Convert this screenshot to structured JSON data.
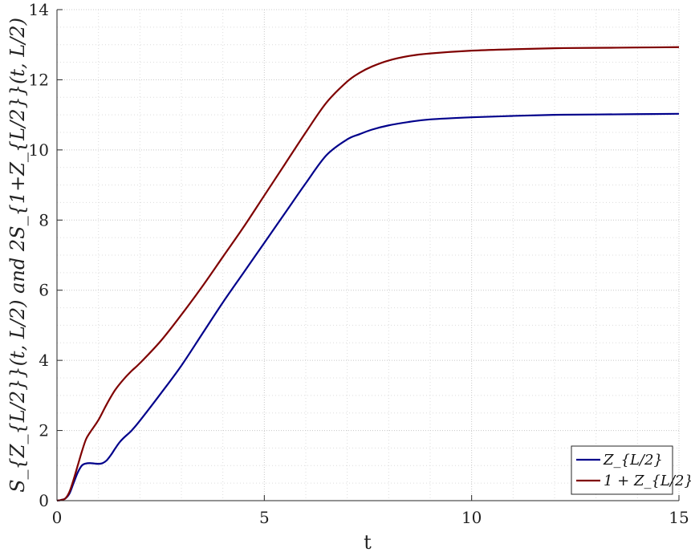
{
  "chart_data": {
    "type": "line",
    "xlabel": "t",
    "ylabel": "S_{Z_{L/2}}(t, L/2) and 2S_{1+Z_{L/2}}(t, L/2)",
    "xlim": [
      0,
      15
    ],
    "ylim": [
      0,
      14
    ],
    "xticks": [
      0,
      5,
      10,
      15
    ],
    "yticks": [
      0,
      2,
      4,
      6,
      8,
      10,
      12,
      14
    ],
    "grid": true,
    "minor_grid": true,
    "legend_position": "bottom-right",
    "series": [
      {
        "name": "Z_{L/2}",
        "color": "#00008b",
        "x": [
          0,
          0.1,
          0.2,
          0.3,
          0.4,
          0.5,
          0.6,
          0.7,
          0.8,
          0.9,
          1.0,
          1.1,
          1.2,
          1.3,
          1.4,
          1.5,
          1.6,
          1.8,
          2.0,
          2.5,
          3.0,
          3.5,
          4.0,
          4.5,
          5.0,
          5.5,
          6.0,
          6.5,
          7.0,
          7.3,
          7.6,
          8.0,
          8.5,
          9.0,
          10.0,
          11.0,
          12.0,
          13.0,
          14.0,
          15.0
        ],
        "y": [
          0,
          0.02,
          0.06,
          0.2,
          0.5,
          0.8,
          1.0,
          1.06,
          1.07,
          1.06,
          1.05,
          1.07,
          1.15,
          1.3,
          1.48,
          1.65,
          1.78,
          2.0,
          2.28,
          3.05,
          3.85,
          4.75,
          5.65,
          6.5,
          7.35,
          8.2,
          9.05,
          9.85,
          10.3,
          10.45,
          10.58,
          10.7,
          10.8,
          10.87,
          10.93,
          10.97,
          11.0,
          11.01,
          11.02,
          11.03
        ]
      },
      {
        "name": "1 + Z_{L/2}",
        "color": "#7f0000",
        "x": [
          0,
          0.1,
          0.2,
          0.3,
          0.4,
          0.5,
          0.6,
          0.7,
          0.8,
          1.0,
          1.2,
          1.4,
          1.6,
          1.8,
          2.0,
          2.5,
          3.0,
          3.5,
          4.0,
          4.5,
          5.0,
          5.5,
          6.0,
          6.5,
          7.0,
          7.3,
          7.6,
          8.0,
          8.5,
          9.0,
          10.0,
          11.0,
          12.0,
          13.0,
          14.0,
          15.0
        ],
        "y": [
          0,
          0.02,
          0.06,
          0.25,
          0.6,
          1.0,
          1.4,
          1.75,
          1.95,
          2.3,
          2.75,
          3.15,
          3.45,
          3.7,
          3.92,
          4.55,
          5.3,
          6.1,
          6.95,
          7.8,
          8.7,
          9.6,
          10.5,
          11.35,
          11.95,
          12.2,
          12.38,
          12.55,
          12.68,
          12.75,
          12.83,
          12.87,
          12.9,
          12.91,
          12.92,
          12.93
        ]
      }
    ]
  }
}
